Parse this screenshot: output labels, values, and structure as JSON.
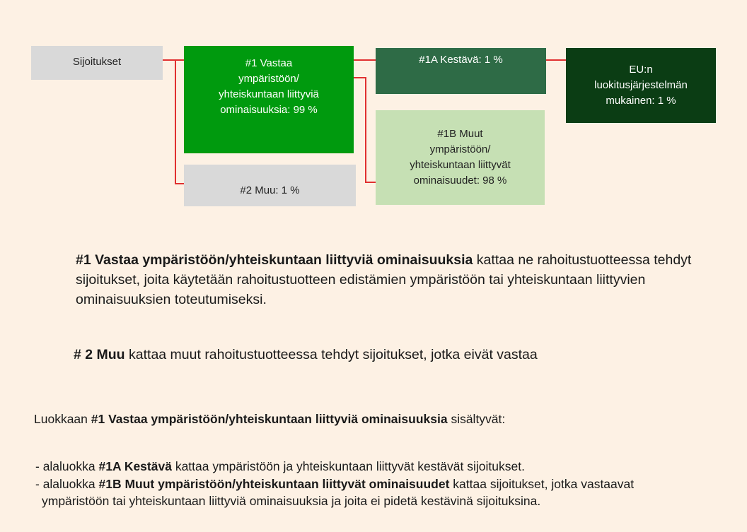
{
  "nodes": [
    {
      "lines": [
        "Sijoitukset"
      ]
    },
    {
      "lines": [
        "#1 Vastaa",
        "ympäristöön/",
        "yhteiskuntaan liittyviä",
        "ominaisuuksia: 99 %"
      ]
    },
    {
      "lines": [
        "#2 Muu: 1 %"
      ]
    },
    {
      "lines": [
        "#1A Kestävä: 1 %"
      ]
    },
    {
      "lines": [
        "#1B Muut",
        "ympäristöön/",
        "yhteiskuntaan liittyvät",
        "ominaisuudet: 98 %"
      ]
    },
    {
      "lines": [
        "EU:n",
        "luokitusjärjestelmän",
        "mukainen: 1 %"
      ]
    }
  ],
  "paragraphs": [
    {
      "parts": [
        {
          "text": "#1 Vastaa ympäristöön/yhteiskuntaan liittyviä ominaisuuksia",
          "bold": true
        },
        {
          "text": " kattaa ne rahoitustuotteessa tehdyt sijoitukset, joita käytetään rahoitustuotteen edistämien ympäristöön tai yhteiskuntaan liittyvien ominaisuuksien toteutumiseksi.",
          "bold": false
        }
      ]
    },
    {
      "parts": [
        {
          "text": "# 2 Muu",
          "bold": true
        },
        {
          "text": " kattaa muut rahoitustuotteessa tehdyt sijoitukset, jotka eivät vastaa",
          "bold": false
        }
      ]
    },
    {
      "parts": [
        {
          "text": "Luokkaan ",
          "bold": false
        },
        {
          "text": "#1 Vastaa ympäristöön/yhteiskuntaan liittyviä ominaisuuksia",
          "bold": true
        },
        {
          "text": " sisältyvät:",
          "bold": false
        }
      ]
    },
    {
      "parts": [
        {
          "text": "- alaluokka ",
          "bold": false
        },
        {
          "text": "#1A Kestävä",
          "bold": true
        },
        {
          "text": " kattaa ympäristöön ja yhteiskuntaan liittyvät kestävät sijoitukset.",
          "bold": false
        }
      ]
    },
    {
      "parts": [
        {
          "text": "- alaluokka ",
          "bold": false
        },
        {
          "text": "#1B Muut ympäristöön/yhteiskuntaan liittyvät ominaisuudet",
          "bold": true
        },
        {
          "text": " kattaa sijoitukset, jotka vastaavat ympäristöön tai yhteiskuntaan liittyviä ominaisuuksia ja joita ei pidetä kestävinä sijoituksina.",
          "bold": false
        }
      ]
    }
  ]
}
